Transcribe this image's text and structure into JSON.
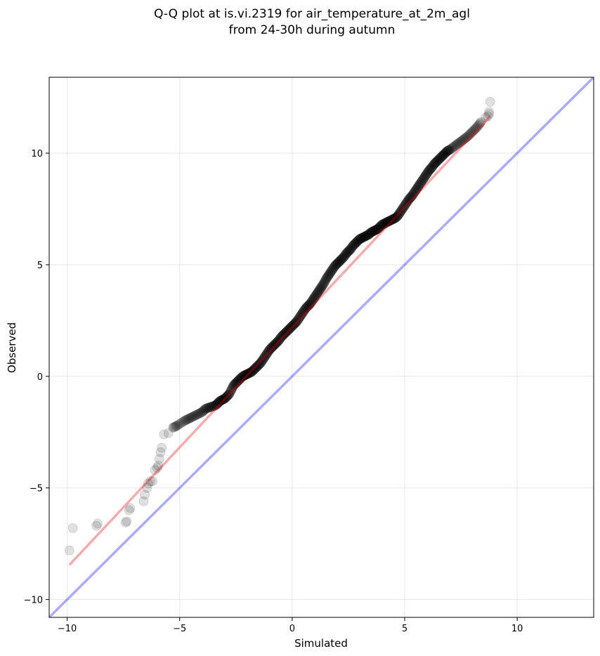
{
  "chart_data": {
    "type": "scatter",
    "title_lines": [
      "Q-Q plot at is.vi.2319 for air_temperature_at_2m_agl",
      "from 24-30h during autumn"
    ],
    "xlabel": "Simulated",
    "ylabel": "Observed",
    "xlim": [
      -10.8,
      13.4
    ],
    "ylim": [
      -10.8,
      13.4
    ],
    "x_ticks": [
      -10,
      -5,
      0,
      5,
      10
    ],
    "y_ticks": [
      -10,
      -5,
      0,
      5,
      10
    ],
    "x_tick_labels": [
      "−10",
      "−5",
      "0",
      "5",
      "10"
    ],
    "y_tick_labels": [
      "−10",
      "−5",
      "0",
      "5",
      "10"
    ],
    "grid": true,
    "legend": "none",
    "colors": {
      "points": "#000000",
      "fit_line": "#e8000b",
      "identity_line": "#0000ff"
    },
    "identity_line": {
      "x": [
        -10.8,
        13.4
      ],
      "y": [
        -10.8,
        13.4
      ]
    },
    "fit_line": {
      "x": [
        -9.9,
        8.8
      ],
      "y": [
        -8.45,
        11.65
      ]
    },
    "series": [
      {
        "x": [
          -9.9,
          -9.75,
          -8.7,
          -8.65,
          -7.4,
          -7.35,
          -7.25,
          -7.2,
          -6.6,
          -6.55,
          -6.45,
          -6.4,
          -6.3,
          -6.2,
          -6.1,
          -6.0,
          -5.95,
          -5.9,
          -5.85,
          -5.8,
          -5.7,
          -5.5,
          -5.3,
          -5.1,
          -4.8,
          -4.6,
          -4.4,
          -4.2,
          -4.0,
          -3.85,
          -3.7,
          -3.55,
          -3.4,
          -3.3,
          -3.2,
          -3.1,
          -3.0,
          -2.9,
          -2.8,
          -2.7,
          -2.6,
          -2.5,
          -2.4,
          -2.3,
          -2.2,
          -2.1,
          -2.0,
          -1.9,
          -1.8,
          -1.7,
          -1.6,
          -1.5,
          -1.4,
          -1.3,
          -1.2,
          -1.1,
          -1.0,
          -0.9,
          -0.8,
          -0.7,
          -0.6,
          -0.5,
          -0.4,
          -0.3,
          -0.2,
          -0.1,
          0.0,
          0.1,
          0.2,
          0.3,
          0.4,
          0.5,
          0.6,
          0.7,
          0.8,
          0.9,
          1.0,
          1.1,
          1.2,
          1.3,
          1.4,
          1.5,
          1.6,
          1.7,
          1.8,
          1.9,
          2.0,
          2.1,
          2.2,
          2.3,
          2.4,
          2.5,
          2.6,
          2.7,
          2.8,
          2.9,
          3.0,
          3.1,
          3.2,
          3.3,
          3.4,
          3.5,
          3.6,
          3.7,
          3.8,
          3.9,
          4.0,
          4.1,
          4.2,
          4.3,
          4.4,
          4.5,
          4.6,
          4.7,
          4.8,
          4.9,
          5.0,
          5.1,
          5.2,
          5.3,
          5.4,
          5.5,
          5.6,
          5.7,
          5.8,
          5.9,
          6.0,
          6.1,
          6.2,
          6.3,
          6.4,
          6.5,
          6.6,
          6.7,
          6.8,
          6.9,
          7.0,
          7.2,
          7.4,
          7.6,
          7.8,
          8.0,
          8.2,
          8.4,
          8.6,
          8.7,
          8.75,
          8.75,
          8.8
        ],
        "y": [
          -7.8,
          -6.8,
          -6.7,
          -6.6,
          -6.55,
          -6.5,
          -6.0,
          -5.9,
          -5.6,
          -5.3,
          -5.0,
          -4.8,
          -4.7,
          -4.7,
          -4.2,
          -4.1,
          -4.0,
          -3.7,
          -3.4,
          -3.2,
          -2.6,
          -2.55,
          -2.3,
          -2.2,
          -2.0,
          -1.9,
          -1.8,
          -1.7,
          -1.6,
          -1.45,
          -1.4,
          -1.35,
          -1.3,
          -1.2,
          -1.1,
          -1.05,
          -1.0,
          -0.9,
          -0.8,
          -0.6,
          -0.4,
          -0.3,
          -0.2,
          -0.1,
          0.0,
          0.05,
          0.1,
          0.15,
          0.2,
          0.3,
          0.4,
          0.5,
          0.6,
          0.75,
          0.9,
          1.05,
          1.2,
          1.3,
          1.4,
          1.5,
          1.6,
          1.75,
          1.85,
          1.95,
          2.05,
          2.15,
          2.25,
          2.35,
          2.45,
          2.6,
          2.75,
          2.9,
          3.05,
          3.15,
          3.25,
          3.4,
          3.55,
          3.7,
          3.85,
          4.0,
          4.15,
          4.35,
          4.5,
          4.65,
          4.8,
          4.95,
          5.05,
          5.15,
          5.25,
          5.35,
          5.5,
          5.6,
          5.7,
          5.85,
          5.95,
          6.05,
          6.15,
          6.2,
          6.25,
          6.3,
          6.35,
          6.45,
          6.5,
          6.55,
          6.6,
          6.7,
          6.8,
          6.85,
          6.9,
          6.95,
          7.0,
          7.05,
          7.1,
          7.2,
          7.35,
          7.5,
          7.65,
          7.8,
          7.95,
          8.05,
          8.2,
          8.35,
          8.5,
          8.65,
          8.8,
          8.95,
          9.1,
          9.25,
          9.35,
          9.5,
          9.6,
          9.7,
          9.8,
          9.9,
          10.0,
          10.1,
          10.15,
          10.3,
          10.45,
          10.6,
          10.75,
          10.95,
          11.15,
          11.4,
          11.6,
          11.65,
          11.75,
          11.85,
          12.3
        ]
      }
    ]
  }
}
